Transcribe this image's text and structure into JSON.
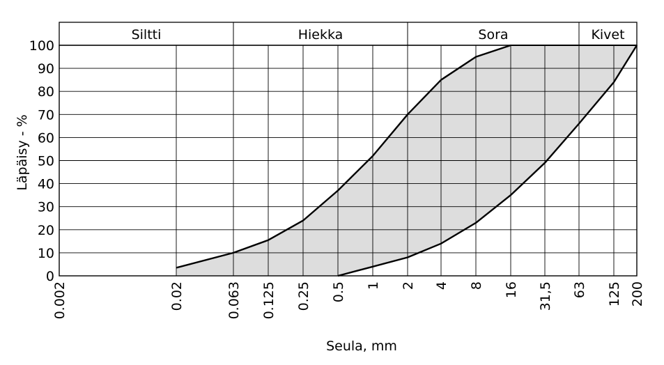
{
  "chart_data": {
    "type": "area",
    "title": "",
    "xlabel": "Seula, mm",
    "ylabel": "Läpäisy - %",
    "yticks": [
      "0",
      "10",
      "20",
      "30",
      "40",
      "50",
      "60",
      "70",
      "80",
      "90",
      "100"
    ],
    "ylim": [
      0,
      100
    ],
    "xticks": [
      "0.002",
      "0.02",
      "0.063",
      "0.125",
      "0.25",
      "0.5",
      "1",
      "2",
      "4",
      "8",
      "16",
      "31,5",
      "63",
      "125",
      "200"
    ],
    "x_scale": "log (sieve sizes)",
    "grid": true,
    "zones": [
      {
        "label": "Siltti",
        "from": "0.002",
        "to": "0.063"
      },
      {
        "label": "Hiekka",
        "from": "0.063",
        "to": "2"
      },
      {
        "label": "Sora",
        "from": "2",
        "to": "63"
      },
      {
        "label": "Kivet",
        "from": "63",
        "to": "200"
      }
    ],
    "series": [
      {
        "x": [
          0.02,
          0.063,
          0.125,
          0.25,
          0.5,
          1,
          2,
          4,
          8,
          16
        ],
        "values": [
          3.5,
          10,
          15.5,
          24,
          37,
          52,
          70,
          85,
          95,
          100
        ]
      },
      {
        "x": [
          0.5,
          1,
          2,
          4,
          8,
          16,
          31.5,
          63,
          125,
          200
        ],
        "values": [
          0,
          4,
          8,
          14,
          23,
          35,
          49,
          66,
          84,
          100
        ]
      }
    ],
    "fill_color": "#dddddd",
    "line_color": "#000000",
    "grid_color": "#000000"
  }
}
